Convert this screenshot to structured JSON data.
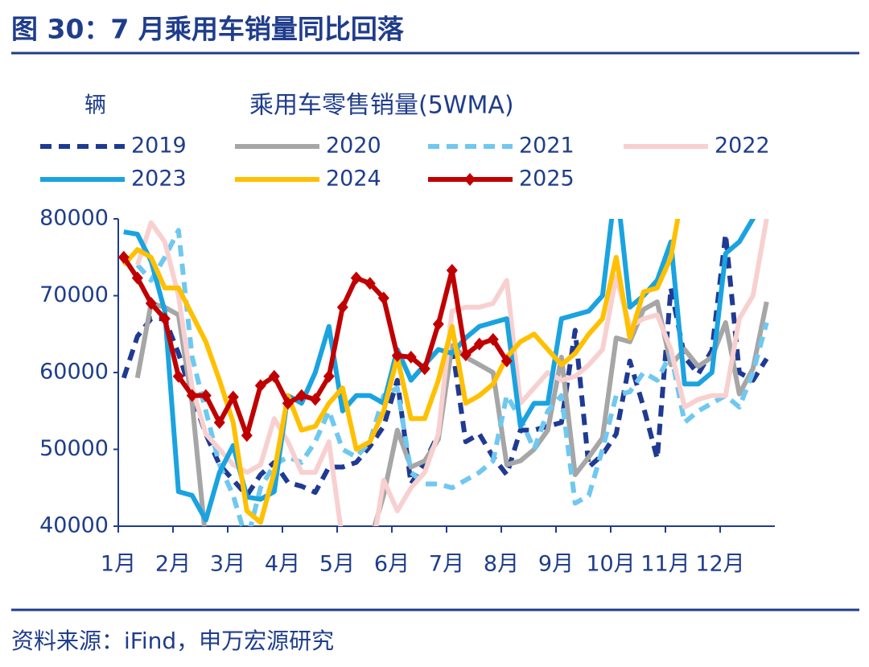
{
  "header": {
    "title": "图 30：7 月乘用车销量同比回落"
  },
  "source": "资料来源：iFind，申万宏源研究",
  "chart_data": {
    "type": "line",
    "title": "乘用车零售销量(5WMA)",
    "y_label": "辆",
    "x": [
      0.1,
      0.35,
      0.6,
      0.85,
      1.1,
      1.35,
      1.6,
      1.85,
      2.1,
      2.35,
      2.6,
      2.85,
      3.1,
      3.35,
      3.6,
      3.85,
      4.1,
      4.35,
      4.6,
      4.85,
      5.1,
      5.35,
      5.6,
      5.85,
      6.1,
      6.35,
      6.6,
      6.85,
      7.1,
      7.35,
      7.6,
      7.85,
      8.1,
      8.35,
      8.6,
      8.85,
      9.1,
      9.35,
      9.6,
      9.85,
      10.1,
      10.35,
      10.6,
      10.85,
      11.1,
      11.35,
      11.6,
      11.85
    ],
    "xlim": [
      0,
      12
    ],
    "xticks": [
      {
        "value": 0,
        "label": "1月"
      },
      {
        "value": 1,
        "label": "2月"
      },
      {
        "value": 2,
        "label": "3月"
      },
      {
        "value": 3,
        "label": "4月"
      },
      {
        "value": 4,
        "label": "5月"
      },
      {
        "value": 5,
        "label": "6月"
      },
      {
        "value": 6,
        "label": "7月"
      },
      {
        "value": 7,
        "label": "8月"
      },
      {
        "value": 8,
        "label": "9月"
      },
      {
        "value": 9,
        "label": "10月"
      },
      {
        "value": 10,
        "label": "11月"
      },
      {
        "value": 11,
        "label": "12月"
      }
    ],
    "ylim": [
      40000,
      80000
    ],
    "yticks": [
      40000,
      50000,
      60000,
      70000,
      80000
    ],
    "series": [
      {
        "name": "2019",
        "color": "#1f3a93",
        "style": "dashed",
        "values": [
          59300,
          64700,
          67000,
          67000,
          62500,
          57000,
          52000,
          48000,
          46000,
          44000,
          46700,
          48300,
          45700,
          45200,
          44400,
          47700,
          47700,
          48300,
          50400,
          53000,
          59000,
          45500,
          48300,
          52000,
          63500,
          51000,
          52000,
          49000,
          46700,
          52500,
          52500,
          53000,
          53500,
          65500,
          47700,
          49300,
          52000,
          61500,
          55500,
          48800,
          71000,
          62000,
          59800,
          62900,
          78000,
          60000,
          59000,
          61800
        ]
      },
      {
        "name": "2020",
        "color": "#a6a6a6",
        "style": "solid",
        "values": [
          null,
          59300,
          69000,
          68500,
          67500,
          56000,
          38000,
          35000,
          35000,
          35000,
          35000,
          35000,
          35000,
          35000,
          35000,
          35000,
          35000,
          35000,
          38000,
          44000,
          52500,
          47700,
          48500,
          51300,
          63500,
          62000,
          61000,
          60000,
          48000,
          48500,
          50000,
          52500,
          62000,
          46700,
          49000,
          51500,
          64500,
          64000,
          68200,
          69200,
          61000,
          63000,
          60800,
          62000,
          66500,
          57200,
          60500,
          69200
        ]
      },
      {
        "name": "2021",
        "color": "#6fc8f0",
        "style": "dashed",
        "values": [
          null,
          74000,
          72000,
          75000,
          78500,
          62000,
          55000,
          48000,
          44000,
          38000,
          45000,
          48000,
          49000,
          48300,
          51000,
          55000,
          50000,
          49000,
          51000,
          57000,
          58000,
          47000,
          45500,
          45500,
          45000,
          46000,
          47000,
          48500,
          57000,
          54000,
          50000,
          55000,
          57000,
          43000,
          44000,
          50000,
          57000,
          57500,
          60000,
          59000,
          62500,
          53500,
          55000,
          56000,
          57000,
          55500,
          60000,
          66500
        ]
      },
      {
        "name": "2022",
        "color": "#f8d0d0",
        "style": "solid",
        "values": [
          null,
          74000,
          79500,
          77000,
          70000,
          58000,
          52000,
          50000,
          48000,
          47000,
          48000,
          54000,
          51000,
          47000,
          47000,
          51000,
          38000,
          30000,
          35000,
          46000,
          42000,
          45000,
          47000,
          52000,
          68000,
          68500,
          68500,
          69000,
          72000,
          56000,
          58000,
          60000,
          59000,
          59500,
          61000,
          63000,
          72500,
          66000,
          67000,
          67500,
          63000,
          55500,
          56500,
          57000,
          57000,
          67000,
          70000,
          80000
        ]
      },
      {
        "name": "2023",
        "color": "#1aa3e0",
        "style": "solid",
        "values": [
          78300,
          78000,
          74500,
          68000,
          44500,
          44000,
          40800,
          47000,
          50500,
          43800,
          43500,
          44500,
          57000,
          56000,
          60000,
          66000,
          55000,
          57000,
          57000,
          56000,
          63000,
          59000,
          61000,
          63000,
          62500,
          64500,
          66000,
          66500,
          67000,
          53000,
          56000,
          56000,
          67000,
          67500,
          68000,
          70000,
          85000,
          68500,
          70000,
          72000,
          77000,
          58500,
          58500,
          60000,
          75500,
          77000,
          80000,
          85000
        ]
      },
      {
        "name": "2024",
        "color": "#ffc000",
        "style": "solid",
        "values": [
          74000,
          76000,
          75000,
          71000,
          71000,
          67500,
          64000,
          59000,
          53500,
          42000,
          40500,
          47000,
          57000,
          52500,
          53000,
          56000,
          58000,
          50000,
          51000,
          55000,
          62000,
          54000,
          54000,
          59000,
          66000,
          56000,
          57000,
          58500,
          62000,
          64000,
          65000,
          63000,
          61000,
          62500,
          65000,
          67000,
          75000,
          64500,
          70500,
          71000,
          75000,
          85000,
          null,
          null,
          null,
          null,
          null,
          null
        ]
      },
      {
        "name": "2025",
        "color": "#c00000",
        "style": "solid",
        "marker": "diamond",
        "values": [
          75000,
          72300,
          69000,
          67000,
          59500,
          57000,
          57000,
          53500,
          56800,
          51800,
          58300,
          59500,
          56000,
          57000,
          56500,
          59500,
          68500,
          72300,
          71600,
          69700,
          62200,
          62000,
          60500,
          66300,
          73300,
          62300,
          63700,
          64300,
          61500,
          null,
          null,
          null,
          null,
          null,
          null,
          null,
          null,
          null,
          null,
          null,
          null,
          null,
          null,
          null,
          null,
          null,
          null,
          null
        ]
      }
    ]
  }
}
